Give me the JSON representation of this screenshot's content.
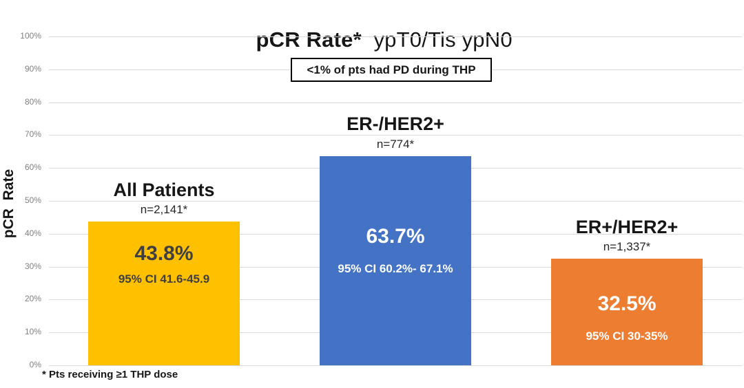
{
  "title": {
    "bold": "pCR Rate* ",
    "regular": " ypT0/Tis ypN0"
  },
  "annotation_box": "<1% of pts had PD during THP",
  "footnote": "* Pts receiving ≥1 THP dose",
  "y_axis": {
    "label": "pCR  Rate",
    "ticks": [
      "100%",
      "90%",
      "80%",
      "70%",
      "60%",
      "50%",
      "40%",
      "30%",
      "20%",
      "10%",
      "0%"
    ]
  },
  "chart_data": {
    "type": "bar",
    "title": "pCR Rate* ypT0/Tis ypN0",
    "xlabel": "",
    "ylabel": "pCR Rate",
    "ylim": [
      0,
      100
    ],
    "ytick_step": 10,
    "grid": true,
    "legend_position": "none",
    "annotation": "<1% of pts had PD during THP",
    "footnote": "* Pts receiving ≥1 THP dose",
    "categories": [
      "All Patients",
      "ER-/HER2+",
      "ER+/HER2+"
    ],
    "n_labels": [
      "n=2,141*",
      "n=774*",
      "n=1,337*"
    ],
    "values": [
      43.8,
      63.7,
      32.5
    ],
    "value_labels": [
      "43.8%",
      "63.7%",
      "32.5%"
    ],
    "ci_labels": [
      "95% CI 41.6-45.9",
      "95% CI 60.2%- 67.1%",
      "95% CI 30-35%"
    ],
    "bar_colors": [
      "#FFC000",
      "#4472C4",
      "#ED7D31"
    ],
    "value_text_colors": [
      "#3f3f3f",
      "#FFFFFF",
      "#FFFFFF"
    ]
  },
  "colors": {
    "gridline": "#d9d9d9",
    "tick_text": "#7f7f7f",
    "heading_text": "#161616",
    "background": "#ffffff"
  }
}
